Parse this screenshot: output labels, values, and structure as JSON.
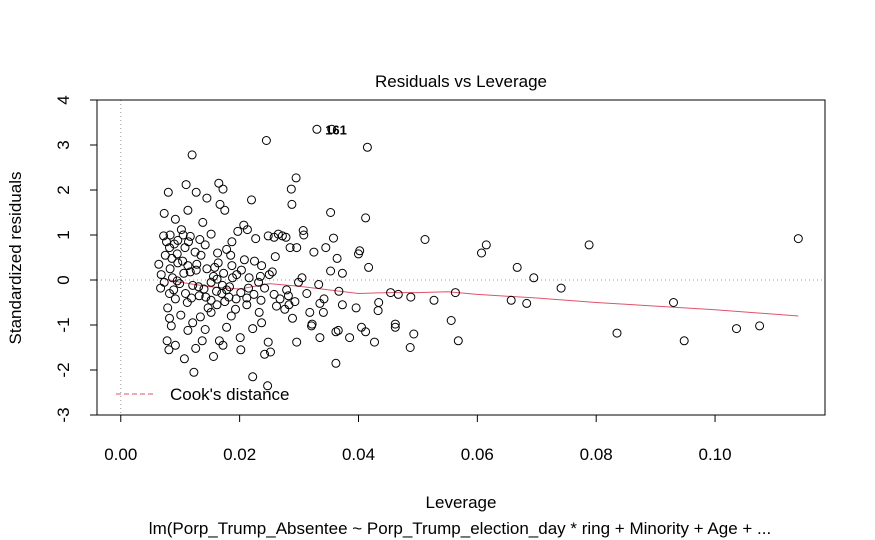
{
  "chart_data": {
    "type": "scatter",
    "title": "Residuals vs Leverage",
    "xlabel": "Leverage",
    "ylabel": "Standardized residuals",
    "caption": "lm(Porp_Trump_Absentee ~ Porp_Trump_election_day * ring + Minority + Age +  ...",
    "xlim": [
      -0.004,
      0.1185
    ],
    "ylim": [
      -3.0,
      4.0
    ],
    "x_ticks": [
      0.0,
      0.02,
      0.04,
      0.06,
      0.08,
      0.1
    ],
    "x_tick_labels": [
      "0.00",
      "0.02",
      "0.04",
      "0.06",
      "0.08",
      "0.10"
    ],
    "y_ticks": [
      -3,
      -2,
      -1,
      0,
      1,
      2,
      3,
      4
    ],
    "y_tick_labels": [
      "-3",
      "-2",
      "-1",
      "0",
      "1",
      "2",
      "3",
      "4"
    ],
    "grid": false,
    "reference_lines": {
      "h": 0,
      "v": 0
    },
    "legend": {
      "placement": "bottom-left",
      "label": "Cook's distance",
      "color": "#DF536B"
    },
    "point_labels": [
      {
        "text": "161",
        "x": 0.0344,
        "y": 3.35
      }
    ],
    "points": [
      [
        0.033,
        3.35
      ],
      [
        0.0355,
        3.35
      ],
      [
        0.0245,
        3.1
      ],
      [
        0.0415,
        2.95
      ],
      [
        0.012,
        2.78
      ],
      [
        0.0295,
        2.27
      ],
      [
        0.011,
        2.12
      ],
      [
        0.0165,
        2.15
      ],
      [
        0.0172,
        2.02
      ],
      [
        0.008,
        1.95
      ],
      [
        0.0127,
        1.95
      ],
      [
        0.0287,
        2.02
      ],
      [
        0.022,
        1.78
      ],
      [
        0.0145,
        1.82
      ],
      [
        0.0167,
        1.68
      ],
      [
        0.0175,
        1.55
      ],
      [
        0.0288,
        1.68
      ],
      [
        0.0353,
        1.5
      ],
      [
        0.0412,
        1.38
      ],
      [
        0.0073,
        1.48
      ],
      [
        0.0113,
        1.55
      ],
      [
        0.0092,
        1.35
      ],
      [
        0.0138,
        1.28
      ],
      [
        0.0102,
        1.12
      ],
      [
        0.0197,
        1.08
      ],
      [
        0.0207,
        1.22
      ],
      [
        0.0213,
        1.12
      ],
      [
        0.0265,
        1.02
      ],
      [
        0.0272,
        0.98
      ],
      [
        0.0307,
        1.1
      ],
      [
        0.0308,
        1.0
      ],
      [
        0.0083,
        1.0
      ],
      [
        0.0105,
        1.0
      ],
      [
        0.0117,
        0.97
      ],
      [
        0.0152,
        1.02
      ],
      [
        0.0187,
        0.85
      ],
      [
        0.0227,
        0.92
      ],
      [
        0.0248,
        0.98
      ],
      [
        0.0258,
        0.95
      ],
      [
        0.0278,
        0.95
      ],
      [
        0.0296,
        0.72
      ],
      [
        0.0345,
        0.72
      ],
      [
        0.0358,
        0.93
      ],
      [
        0.04,
        0.58
      ],
      [
        0.0402,
        0.65
      ],
      [
        0.0512,
        0.9
      ],
      [
        0.0607,
        0.6
      ],
      [
        0.0615,
        0.78
      ],
      [
        0.0788,
        0.78
      ],
      [
        0.114,
        0.92
      ],
      [
        0.0077,
        0.85
      ],
      [
        0.009,
        0.8
      ],
      [
        0.0108,
        0.72
      ],
      [
        0.0125,
        0.62
      ],
      [
        0.0135,
        0.55
      ],
      [
        0.0163,
        0.6
      ],
      [
        0.0178,
        0.68
      ],
      [
        0.0185,
        0.55
      ],
      [
        0.0208,
        0.45
      ],
      [
        0.0225,
        0.42
      ],
      [
        0.0237,
        0.32
      ],
      [
        0.026,
        0.52
      ],
      [
        0.0285,
        0.72
      ],
      [
        0.0325,
        0.62
      ],
      [
        0.0364,
        0.48
      ],
      [
        0.0373,
        0.15
      ],
      [
        0.0417,
        0.28
      ],
      [
        0.0075,
        0.55
      ],
      [
        0.0086,
        0.48
      ],
      [
        0.0096,
        0.38
      ],
      [
        0.0113,
        0.32
      ],
      [
        0.0127,
        0.22
      ],
      [
        0.0145,
        0.25
      ],
      [
        0.0158,
        0.28
      ],
      [
        0.0173,
        0.15
      ],
      [
        0.0195,
        0.12
      ],
      [
        0.0216,
        0.05
      ],
      [
        0.0235,
        0.08
      ],
      [
        0.025,
        0.12
      ],
      [
        0.0305,
        0.05
      ],
      [
        0.0353,
        0.2
      ],
      [
        0.0064,
        0.35
      ],
      [
        0.0068,
        0.12
      ],
      [
        0.0073,
        -0.05
      ],
      [
        0.0083,
        0.25
      ],
      [
        0.0095,
        -0.02
      ],
      [
        0.0106,
        0.15
      ],
      [
        0.0121,
        -0.12
      ],
      [
        0.014,
        -0.2
      ],
      [
        0.0152,
        -0.05
      ],
      [
        0.017,
        -0.3
      ],
      [
        0.0183,
        -0.15
      ],
      [
        0.0202,
        -0.28
      ],
      [
        0.0224,
        -0.32
      ],
      [
        0.0242,
        -0.18
      ],
      [
        0.0268,
        -0.42
      ],
      [
        0.0283,
        -0.55
      ],
      [
        0.0293,
        -0.48
      ],
      [
        0.0313,
        -0.3
      ],
      [
        0.0335,
        -0.52
      ],
      [
        0.0342,
        -0.42
      ],
      [
        0.0373,
        -0.55
      ],
      [
        0.0396,
        -0.62
      ],
      [
        0.0434,
        -0.5
      ],
      [
        0.0454,
        -0.28
      ],
      [
        0.0082,
        -0.3
      ],
      [
        0.0092,
        -0.42
      ],
      [
        0.0112,
        -0.5
      ],
      [
        0.0132,
        -0.35
      ],
      [
        0.0147,
        -0.62
      ],
      [
        0.0162,
        -0.55
      ],
      [
        0.0175,
        -0.48
      ],
      [
        0.0193,
        -0.65
      ],
      [
        0.0212,
        -0.55
      ],
      [
        0.0233,
        -0.72
      ],
      [
        0.0262,
        -0.58
      ],
      [
        0.0289,
        -0.85
      ],
      [
        0.0322,
        -0.98
      ],
      [
        0.0341,
        -0.72
      ],
      [
        0.0366,
        -1.12
      ],
      [
        0.0385,
        -1.28
      ],
      [
        0.0412,
        -1.15
      ],
      [
        0.0433,
        -0.68
      ],
      [
        0.0462,
        -1.05
      ],
      [
        0.0493,
        -1.2
      ],
      [
        0.0527,
        -0.45
      ],
      [
        0.0556,
        -0.9
      ],
      [
        0.0563,
        -0.28
      ],
      [
        0.0568,
        -1.35
      ],
      [
        0.0082,
        -0.85
      ],
      [
        0.0085,
        -1.02
      ],
      [
        0.0101,
        -0.78
      ],
      [
        0.0113,
        -1.12
      ],
      [
        0.0121,
        -0.95
      ],
      [
        0.0134,
        -0.82
      ],
      [
        0.0142,
        -1.1
      ],
      [
        0.0152,
        -0.72
      ],
      [
        0.0166,
        -1.35
      ],
      [
        0.0178,
        -1.05
      ],
      [
        0.0186,
        -0.8
      ],
      [
        0.0201,
        -1.28
      ],
      [
        0.0222,
        -1.08
      ],
      [
        0.0237,
        -0.95
      ],
      [
        0.0248,
        -1.38
      ],
      [
        0.0252,
        -1.6
      ],
      [
        0.0276,
        -0.65
      ],
      [
        0.0296,
        -1.38
      ],
      [
        0.0321,
        -1.02
      ],
      [
        0.0335,
        -1.28
      ],
      [
        0.0362,
        -1.15
      ],
      [
        0.0405,
        -1.05
      ],
      [
        0.0427,
        -1.38
      ],
      [
        0.0462,
        -0.98
      ],
      [
        0.0487,
        -1.5
      ],
      [
        0.0657,
        -0.45
      ],
      [
        0.0741,
        -0.18
      ],
      [
        0.0835,
        -1.18
      ],
      [
        0.093,
        -0.5
      ],
      [
        0.0948,
        -1.35
      ],
      [
        0.1036,
        -1.08
      ],
      [
        0.1075,
        -1.02
      ],
      [
        0.0078,
        -1.35
      ],
      [
        0.0081,
        -1.55
      ],
      [
        0.0092,
        -1.45
      ],
      [
        0.0107,
        -1.75
      ],
      [
        0.0126,
        -1.52
      ],
      [
        0.0137,
        -1.35
      ],
      [
        0.0156,
        -1.7
      ],
      [
        0.0172,
        -1.45
      ],
      [
        0.0202,
        -1.55
      ],
      [
        0.0242,
        -1.65
      ],
      [
        0.0362,
        -1.85
      ],
      [
        0.0123,
        -2.05
      ],
      [
        0.0222,
        -2.15
      ],
      [
        0.0247,
        -2.35
      ],
      [
        0.0667,
        0.28
      ],
      [
        0.0683,
        -0.52
      ],
      [
        0.0695,
        0.05
      ],
      [
        0.0467,
        -0.32
      ],
      [
        0.0488,
        -0.38
      ],
      [
        0.0072,
        0.98
      ],
      [
        0.0082,
        0.72
      ],
      [
        0.0096,
        0.88
      ],
      [
        0.0104,
        0.42
      ],
      [
        0.0117,
        0.18
      ],
      [
        0.0128,
        0.35
      ],
      [
        0.0142,
        0.78
      ],
      [
        0.0156,
        0.08
      ],
      [
        0.0164,
        0.38
      ],
      [
        0.0187,
        0.32
      ],
      [
        0.0203,
        0.22
      ],
      [
        0.0067,
        -0.18
      ],
      [
        0.0079,
        -0.62
      ],
      [
        0.0089,
        -0.22
      ],
      [
        0.0099,
        -0.08
      ],
      [
        0.0109,
        -0.3
      ],
      [
        0.0119,
        -0.4
      ],
      [
        0.0131,
        -0.15
      ],
      [
        0.0143,
        -0.38
      ],
      [
        0.0152,
        -0.45
      ],
      [
        0.0161,
        -0.25
      ],
      [
        0.0171,
        -0.12
      ],
      [
        0.0182,
        -0.38
      ],
      [
        0.0194,
        -0.42
      ],
      [
        0.0215,
        -0.18
      ],
      [
        0.0232,
        -0.05
      ],
      [
        0.0258,
        -0.32
      ],
      [
        0.0279,
        -0.22
      ],
      [
        0.0299,
        -0.05
      ],
      [
        0.0318,
        -0.72
      ],
      [
        0.0333,
        -0.1
      ],
      [
        0.0367,
        -0.25
      ],
      [
        0.0087,
        0.05
      ],
      [
        0.0095,
        0.58
      ],
      [
        0.0114,
        0.85
      ],
      [
        0.0133,
        0.9
      ],
      [
        0.0162,
        0.02
      ],
      [
        0.0178,
        -0.22
      ],
      [
        0.0188,
        0.05
      ],
      [
        0.0212,
        -0.4
      ],
      [
        0.0236,
        -0.45
      ],
      [
        0.0255,
        0.18
      ],
      [
        0.0282,
        -0.35
      ]
    ],
    "lowess": [
      [
        0.0065,
        0.05
      ],
      [
        0.01,
        -0.05
      ],
      [
        0.015,
        -0.15
      ],
      [
        0.02,
        -0.2
      ],
      [
        0.025,
        -0.08
      ],
      [
        0.03,
        -0.14
      ],
      [
        0.035,
        -0.22
      ],
      [
        0.04,
        -0.3
      ],
      [
        0.045,
        -0.28
      ],
      [
        0.05,
        -0.28
      ],
      [
        0.055,
        -0.26
      ],
      [
        0.06,
        -0.32
      ],
      [
        0.07,
        -0.4
      ],
      [
        0.08,
        -0.5
      ],
      [
        0.09,
        -0.58
      ],
      [
        0.1,
        -0.66
      ],
      [
        0.114,
        -0.8
      ]
    ],
    "colors": {
      "points": "#000000",
      "lowess": "#DF536B",
      "reference": "#999999"
    }
  }
}
